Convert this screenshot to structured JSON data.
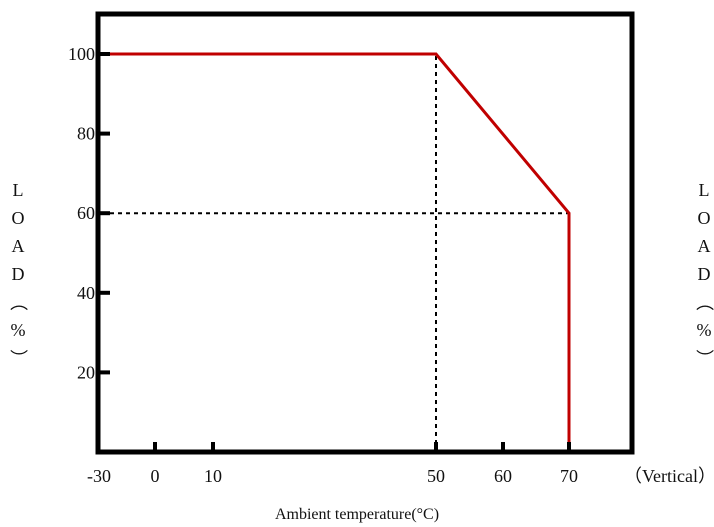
{
  "chart_data": {
    "type": "line",
    "title": "",
    "xlabel": "Ambient temperature(°C)",
    "ylabel": "LOAD（%）",
    "ylabel_right": "LOAD（%）",
    "note": "（Vertical）",
    "x_ticks": [
      -30,
      0,
      10,
      50,
      60,
      70
    ],
    "y_ticks": [
      20,
      40,
      60,
      80,
      100
    ],
    "xlim": [
      -30,
      70
    ],
    "ylim": [
      0,
      110
    ],
    "series": [
      {
        "x": [
          -30,
          50,
          70,
          70
        ],
        "y": [
          100,
          100,
          60,
          0
        ],
        "color": "#c00000"
      }
    ],
    "reference_lines": [
      {
        "from": [
          50,
          0
        ],
        "to": [
          50,
          100
        ]
      },
      {
        "from": [
          -30,
          60
        ],
        "to": [
          70,
          60
        ]
      }
    ],
    "grid": false,
    "legend": "none"
  }
}
